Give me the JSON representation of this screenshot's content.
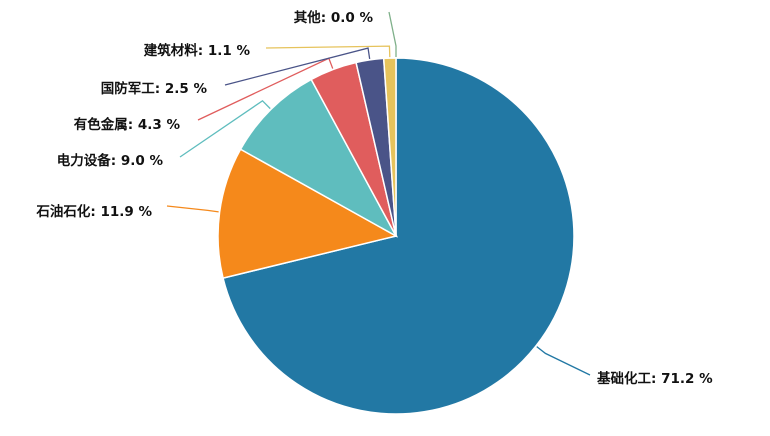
{
  "chart_data": {
    "type": "pie",
    "unit": "%",
    "start": "top",
    "direction": "clockwise",
    "slices": [
      {
        "label": "基础化工",
        "value": 71.2,
        "color": "#2278a4"
      },
      {
        "label": "石油石化",
        "value": 11.9,
        "color": "#f5891b"
      },
      {
        "label": "电力设备",
        "value": 9.0,
        "color": "#5fbdbe"
      },
      {
        "label": "有色金属",
        "value": 4.3,
        "color": "#e05d5d"
      },
      {
        "label": "国防军工",
        "value": 2.5,
        "color": "#4a5488"
      },
      {
        "label": "建筑材料",
        "value": 1.1,
        "color": "#e6c35c"
      },
      {
        "label": "其他",
        "value": 0.0,
        "color": "#7fb08a"
      }
    ]
  }
}
